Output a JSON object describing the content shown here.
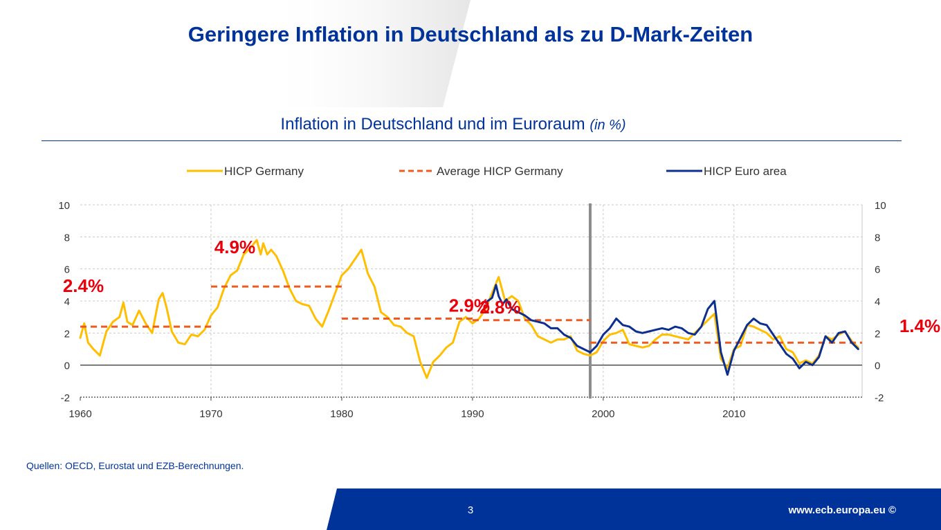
{
  "slide": {
    "title": "Geringere Inflation in Deutschland als zu D-Mark-Zeiten",
    "source": "Quellen: OECD, Eurostat und EZB-Berechnungen.",
    "page_number": "3",
    "footer_url": "www.ecb.europa.eu ©"
  },
  "colors": {
    "brand_blue": "#003399",
    "germany": "#FFBE00",
    "average": "#EF5A1E",
    "euro_area": "#0D2F8F",
    "label_red": "#E8000B",
    "divider": "#8C8C8C"
  },
  "chart_data": {
    "type": "line",
    "title": "Inflation in Deutschland und im Euroraum",
    "title_unit": "(in %)",
    "xlabel": "",
    "ylabel": "",
    "x_range": [
      1960,
      2019.8
    ],
    "ylim": [
      -2,
      10
    ],
    "x_ticks": [
      "1960",
      "1970",
      "1980",
      "1990",
      "2000",
      "2010"
    ],
    "y_ticks": [
      "-2",
      "0",
      "2",
      "4",
      "6",
      "8",
      "10"
    ],
    "grid": true,
    "legend_position": "top",
    "euro_start_marker_x": 1999,
    "series": [
      {
        "name": "HICP Germany",
        "style": "solid",
        "color": "#FFBE00",
        "x": [
          1960,
          1960.3,
          1960.6,
          1961,
          1961.5,
          1962,
          1962.5,
          1963,
          1963.3,
          1963.6,
          1964,
          1964.5,
          1965,
          1965.5,
          1966,
          1966.3,
          1966.6,
          1967,
          1967.5,
          1968,
          1968.5,
          1969,
          1969.5,
          1970,
          1970.5,
          1971,
          1971.5,
          1972,
          1972.5,
          1973,
          1973.5,
          1973.8,
          1974,
          1974.3,
          1974.6,
          1975,
          1975.5,
          1976,
          1976.5,
          1977,
          1977.5,
          1978,
          1978.5,
          1979,
          1979.5,
          1980,
          1980.5,
          1981,
          1981.5,
          1982,
          1982.5,
          1983,
          1983.5,
          1984,
          1984.5,
          1985,
          1985.5,
          1986,
          1986.5,
          1987,
          1987.5,
          1988,
          1988.5,
          1989,
          1989.5,
          1990,
          1990.5,
          1991,
          1991.5,
          1992,
          1992.5,
          1993,
          1993.5,
          1994,
          1994.5,
          1995,
          1995.5,
          1996,
          1996.5,
          1997,
          1997.5,
          1998,
          1998.5,
          1999,
          1999.5,
          2000,
          2000.5,
          2001,
          2001.5,
          2002,
          2002.5,
          2003,
          2003.5,
          2004,
          2004.5,
          2005,
          2005.5,
          2006,
          2006.5,
          2007,
          2007.5,
          2008,
          2008.5,
          2009,
          2009.5,
          2010,
          2010.5,
          2011,
          2011.5,
          2012,
          2012.5,
          2013,
          2013.5,
          2014,
          2014.5,
          2015,
          2015.5,
          2016,
          2016.5,
          2017,
          2017.5,
          2018,
          2018.5,
          2019,
          2019.5
        ],
        "y": [
          1.7,
          2.6,
          1.4,
          1.0,
          0.6,
          2.1,
          2.7,
          3.0,
          3.9,
          2.7,
          2.5,
          3.4,
          2.6,
          2.0,
          4.1,
          4.5,
          3.6,
          2.1,
          1.4,
          1.3,
          1.9,
          1.8,
          2.2,
          3.1,
          3.6,
          4.8,
          5.6,
          5.9,
          6.9,
          7.3,
          7.8,
          6.9,
          7.6,
          6.9,
          7.2,
          6.8,
          5.9,
          4.8,
          4.0,
          3.8,
          3.7,
          2.9,
          2.4,
          3.4,
          4.5,
          5.6,
          6.0,
          6.6,
          7.2,
          5.7,
          4.9,
          3.3,
          3.0,
          2.5,
          2.4,
          2.0,
          1.8,
          0.2,
          -0.8,
          0.2,
          0.6,
          1.1,
          1.4,
          2.7,
          3.0,
          2.6,
          2.9,
          3.5,
          4.5,
          5.5,
          4.0,
          4.3,
          4.0,
          2.9,
          2.5,
          1.8,
          1.6,
          1.4,
          1.6,
          1.6,
          1.8,
          0.9,
          0.7,
          0.6,
          0.8,
          1.5,
          1.9,
          2.0,
          2.2,
          1.3,
          1.2,
          1.1,
          1.2,
          1.6,
          1.9,
          1.9,
          1.8,
          1.7,
          1.6,
          2.0,
          2.4,
          2.8,
          3.2,
          0.4,
          -0.2,
          1.0,
          1.2,
          2.5,
          2.4,
          2.2,
          2.0,
          1.6,
          1.8,
          1.0,
          0.8,
          0.1,
          0.3,
          0.1,
          0.6,
          1.8,
          1.6,
          1.9,
          2.1,
          1.5,
          1.1
        ]
      },
      {
        "name": "Average HICP Germany",
        "style": "dashed",
        "color": "#EF5A1E",
        "segments": [
          {
            "x": [
              1960,
              1970
            ],
            "value": 2.4,
            "label": "2.4%"
          },
          {
            "x": [
              1970,
              1980
            ],
            "value": 4.9,
            "label": "4.9%"
          },
          {
            "x": [
              1980,
              1990
            ],
            "value": 2.9,
            "label": "2.9%"
          },
          {
            "x": [
              1990,
              1999
            ],
            "value": 2.8,
            "label": "2.8%"
          },
          {
            "x": [
              1999,
              2019.8
            ],
            "value": 1.4,
            "label": "1.4%"
          }
        ]
      },
      {
        "name": "HICP Euro area",
        "style": "solid",
        "color": "#0D2F8F",
        "x": [
          1991,
          1991.5,
          1991.8,
          1992,
          1992.3,
          1992.6,
          1993,
          1993.5,
          1994,
          1994.5,
          1995,
          1995.5,
          1996,
          1996.5,
          1997,
          1997.5,
          1998,
          1998.5,
          1999,
          1999.5,
          2000,
          2000.5,
          2001,
          2001.5,
          2002,
          2002.5,
          2003,
          2003.5,
          2004,
          2004.5,
          2005,
          2005.5,
          2006,
          2006.5,
          2007,
          2007.5,
          2008,
          2008.5,
          2009,
          2009.5,
          2010,
          2010.5,
          2011,
          2011.5,
          2012,
          2012.5,
          2013,
          2013.5,
          2014,
          2014.5,
          2015,
          2015.5,
          2016,
          2016.5,
          2017,
          2017.5,
          2018,
          2018.5,
          2019,
          2019.5
        ],
        "y": [
          3.9,
          4.2,
          5.0,
          4.3,
          3.8,
          4.1,
          3.5,
          3.3,
          3.1,
          2.8,
          2.7,
          2.6,
          2.3,
          2.3,
          1.9,
          1.7,
          1.2,
          1.0,
          0.8,
          1.2,
          1.9,
          2.3,
          2.9,
          2.5,
          2.4,
          2.1,
          2.0,
          2.1,
          2.2,
          2.3,
          2.2,
          2.4,
          2.3,
          2.0,
          1.9,
          2.4,
          3.5,
          4.0,
          0.8,
          -0.6,
          0.9,
          1.7,
          2.5,
          2.9,
          2.6,
          2.5,
          1.9,
          1.3,
          0.7,
          0.4,
          -0.2,
          0.2,
          0.0,
          0.5,
          1.8,
          1.4,
          2.0,
          2.1,
          1.4,
          1.0
        ]
      }
    ]
  }
}
